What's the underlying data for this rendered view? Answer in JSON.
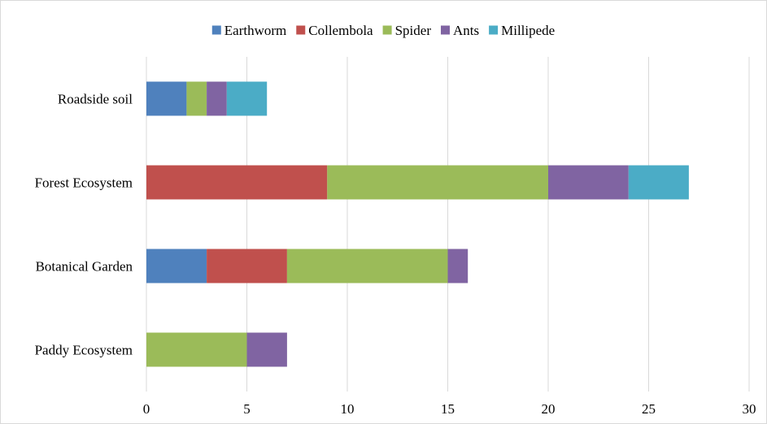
{
  "chart_data": {
    "type": "bar",
    "orientation": "horizontal",
    "stacked": true,
    "title": "",
    "xlabel": "",
    "ylabel": "",
    "categories": [
      "Roadside soil",
      "Forest Ecosystem",
      "Botanical Garden",
      "Paddy Ecosystem"
    ],
    "series": [
      {
        "name": "Earthworm",
        "color": "#4f81bd",
        "values": [
          2,
          0,
          3,
          0
        ]
      },
      {
        "name": "Collembola",
        "color": "#c0504d",
        "values": [
          0,
          9,
          4,
          0
        ]
      },
      {
        "name": "Spider",
        "color": "#9bbb59",
        "values": [
          1,
          11,
          8,
          5
        ]
      },
      {
        "name": "Ants",
        "color": "#8064a2",
        "values": [
          1,
          4,
          1,
          2
        ]
      },
      {
        "name": "Millipede",
        "color": "#4bacc6",
        "values": [
          2,
          3,
          0,
          0
        ]
      }
    ],
    "xlim": [
      0,
      30
    ],
    "xticks": [
      0,
      5,
      10,
      15,
      20,
      25,
      30
    ],
    "grid": "vertical",
    "legend": "top-center"
  }
}
